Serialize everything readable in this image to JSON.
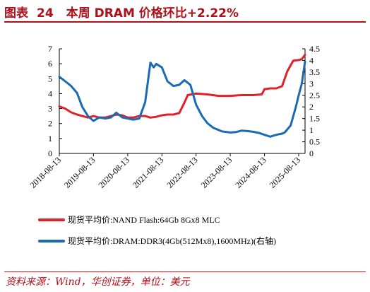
{
  "header": {
    "label": "图表",
    "number": "24",
    "title": "本周 DRAM 价格环比+2.22%"
  },
  "source": "资料来源：Wind，华创证券，单位：美元",
  "colors": {
    "red": "#e0202a",
    "blue": "#1a6ab4",
    "accent": "#b00f1a"
  },
  "chart_data": {
    "type": "line",
    "x_ticks": [
      "2018-08-13",
      "2019-08-13",
      "2020-08-13",
      "2021-08-13",
      "2022-08-13",
      "2023-08-13",
      "2024-08-13",
      "2025-08-13"
    ],
    "y_left_ticks": [
      "0",
      "1",
      "2",
      "3",
      "4",
      "5",
      "6",
      "7"
    ],
    "y_right_ticks": [
      "0",
      "0.5",
      "1",
      "1.5",
      "2",
      "2.5",
      "3",
      "3.5",
      "4",
      "4.5"
    ],
    "ylim_left": [
      0,
      7
    ],
    "ylim_right": [
      0,
      4.5
    ],
    "xlim": [
      "2018-08-13",
      "2025-10-20"
    ],
    "legend_position": "bottom",
    "series": [
      {
        "name": "现货平均价:NAND Flash:64Gb 8Gx8 MLC",
        "axis": "left",
        "color": "#e0202a",
        "points": [
          [
            "2018-08-13",
            3.15
          ],
          [
            "2018-10-15",
            3.0
          ],
          [
            "2018-12-17",
            2.75
          ],
          [
            "2019-02-18",
            2.6
          ],
          [
            "2019-04-15",
            2.5
          ],
          [
            "2019-06-17",
            2.4
          ],
          [
            "2019-08-13",
            2.5
          ],
          [
            "2019-10-14",
            2.4
          ],
          [
            "2019-12-16",
            2.4
          ],
          [
            "2020-02-17",
            2.5
          ],
          [
            "2020-04-13",
            2.6
          ],
          [
            "2020-06-15",
            2.55
          ],
          [
            "2020-08-13",
            2.4
          ],
          [
            "2020-10-12",
            2.4
          ],
          [
            "2020-12-14",
            2.5
          ],
          [
            "2021-02-15",
            2.5
          ],
          [
            "2021-04-12",
            2.4
          ],
          [
            "2021-06-14",
            2.45
          ],
          [
            "2021-08-13",
            2.55
          ],
          [
            "2021-10-11",
            2.6
          ],
          [
            "2021-12-13",
            2.6
          ],
          [
            "2022-02-14",
            2.7
          ],
          [
            "2022-04-11",
            3.4
          ],
          [
            "2022-05-16",
            3.9
          ],
          [
            "2022-08-13",
            4.0
          ],
          [
            "2022-12-12",
            3.95
          ],
          [
            "2023-04-10",
            3.85
          ],
          [
            "2023-08-13",
            3.85
          ],
          [
            "2023-12-11",
            3.9
          ],
          [
            "2024-04-15",
            3.9
          ],
          [
            "2024-07-15",
            3.95
          ],
          [
            "2024-08-13",
            4.3
          ],
          [
            "2024-10-14",
            4.35
          ],
          [
            "2024-12-16",
            4.35
          ],
          [
            "2025-02-17",
            4.5
          ],
          [
            "2025-04-14",
            5.5
          ],
          [
            "2025-06-16",
            6.2
          ],
          [
            "2025-08-13",
            6.25
          ],
          [
            "2025-09-15",
            6.3
          ],
          [
            "2025-10-20",
            6.6
          ]
        ]
      },
      {
        "name": "现货平均价:DRAM:DDR3(4Gb(512Mx8),1600MHz)(右轴)",
        "axis": "right",
        "color": "#1a6ab4",
        "points": [
          [
            "2018-08-13",
            3.3
          ],
          [
            "2018-10-15",
            3.1
          ],
          [
            "2018-12-17",
            2.9
          ],
          [
            "2019-02-18",
            2.6
          ],
          [
            "2019-04-15",
            2.0
          ],
          [
            "2019-06-17",
            1.6
          ],
          [
            "2019-08-13",
            1.4
          ],
          [
            "2019-10-14",
            1.55
          ],
          [
            "2019-12-16",
            1.5
          ],
          [
            "2020-02-17",
            1.55
          ],
          [
            "2020-04-13",
            1.75
          ],
          [
            "2020-06-15",
            1.55
          ],
          [
            "2020-08-13",
            1.5
          ],
          [
            "2020-10-12",
            1.45
          ],
          [
            "2020-12-14",
            1.5
          ],
          [
            "2021-02-15",
            2.2
          ],
          [
            "2021-04-12",
            3.9
          ],
          [
            "2021-05-17",
            3.7
          ],
          [
            "2021-06-14",
            3.85
          ],
          [
            "2021-08-13",
            3.7
          ],
          [
            "2021-10-11",
            3.1
          ],
          [
            "2021-12-13",
            2.9
          ],
          [
            "2022-02-14",
            2.95
          ],
          [
            "2022-04-11",
            3.15
          ],
          [
            "2022-06-13",
            2.95
          ],
          [
            "2022-08-13",
            2.1
          ],
          [
            "2022-10-17",
            1.6
          ],
          [
            "2022-12-12",
            1.3
          ],
          [
            "2023-02-13",
            1.1
          ],
          [
            "2023-05-15",
            0.95
          ],
          [
            "2023-08-13",
            0.9
          ],
          [
            "2023-10-16",
            0.92
          ],
          [
            "2023-12-11",
            0.98
          ],
          [
            "2024-02-12",
            0.96
          ],
          [
            "2024-04-15",
            0.93
          ],
          [
            "2024-06-17",
            0.88
          ],
          [
            "2024-08-13",
            0.8
          ],
          [
            "2024-10-14",
            0.72
          ],
          [
            "2024-12-16",
            0.8
          ],
          [
            "2025-02-17",
            0.85
          ],
          [
            "2025-03-17",
            0.9
          ],
          [
            "2025-05-19",
            1.2
          ],
          [
            "2025-07-14",
            2.0
          ],
          [
            "2025-08-13",
            2.5
          ],
          [
            "2025-09-15",
            3.0
          ],
          [
            "2025-10-20",
            3.95
          ]
        ]
      }
    ]
  }
}
